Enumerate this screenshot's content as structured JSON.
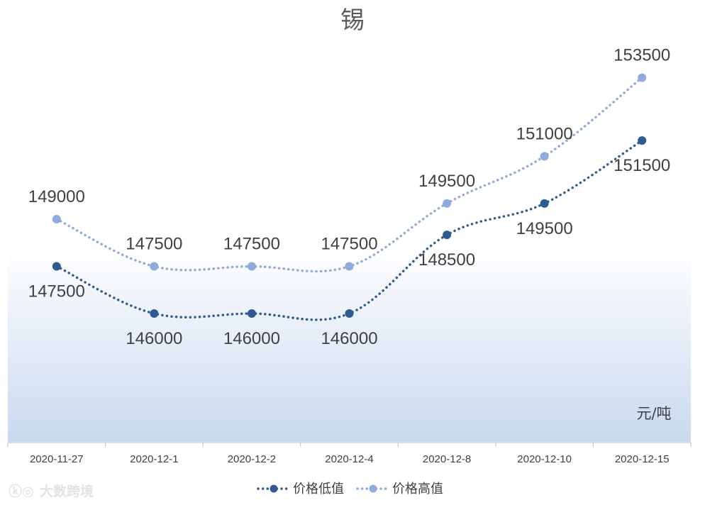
{
  "chart_data": {
    "type": "line",
    "title": "锡",
    "unit_label": "元/吨",
    "categories": [
      "2020-11-27",
      "2020-12-1",
      "2020-12-2",
      "2020-12-4",
      "2020-12-8",
      "2020-12-10",
      "2020-12-15"
    ],
    "series": [
      {
        "name": "价格低值",
        "values": [
          147500,
          146000,
          146000,
          146000,
          148500,
          149500,
          151500
        ],
        "color": "#2f5b92",
        "label_position": "below"
      },
      {
        "name": "价格高值",
        "values": [
          149000,
          147500,
          147500,
          147500,
          149500,
          151000,
          153500
        ],
        "color": "#8faadc",
        "label_position": "above"
      }
    ],
    "high_low_lines": true,
    "ylim": [
      140000,
      155000
    ],
    "line_style": "dotted-smooth",
    "legend_position": "bottom",
    "grid": false,
    "plot_background": "gradient-white-to-light-blue"
  },
  "watermark": {
    "text": "大数跨境"
  }
}
